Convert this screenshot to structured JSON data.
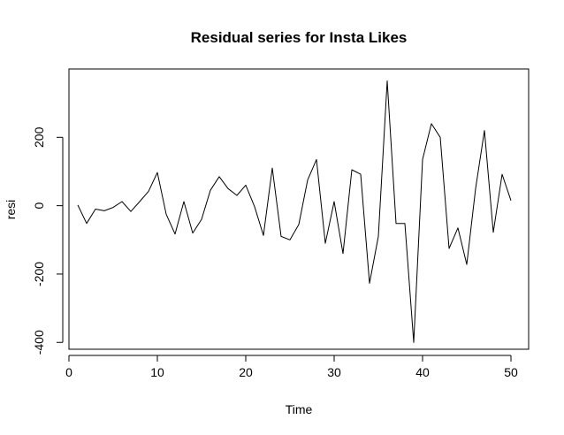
{
  "chart_data": {
    "type": "line",
    "title": "Residual series for Insta Likes",
    "xlabel": "Time",
    "ylabel": "resi",
    "xlim": [
      0,
      52
    ],
    "ylim": [
      -420,
      400
    ],
    "x_ticks": [
      0,
      10,
      20,
      30,
      40,
      50
    ],
    "y_ticks": [
      -400,
      -200,
      0,
      200
    ],
    "grid": false,
    "line_color": "#000000",
    "series": [
      {
        "x": [
          1,
          2,
          3,
          4,
          5,
          6,
          7,
          8,
          9,
          10,
          11,
          12,
          13,
          14,
          15,
          16,
          17,
          18,
          19,
          20,
          21,
          22,
          23,
          24,
          25,
          26,
          27,
          28,
          29,
          30,
          31,
          32,
          33,
          34,
          35,
          36,
          37,
          38,
          39,
          40,
          41,
          42,
          43,
          44,
          45,
          46,
          47,
          48,
          49,
          50
        ],
        "values": [
          2,
          -52,
          -10,
          -15,
          -5,
          12,
          -17,
          12,
          42,
          97,
          -25,
          -83,
          12,
          -80,
          -40,
          45,
          85,
          50,
          30,
          60,
          -3,
          -87,
          110,
          -90,
          -100,
          -55,
          75,
          135,
          -110,
          12,
          -140,
          105,
          92,
          -227,
          -90,
          365,
          -52,
          -52,
          -400,
          135,
          240,
          200,
          -125,
          -65,
          -172,
          50,
          220,
          -78,
          92,
          15
        ]
      }
    ]
  }
}
